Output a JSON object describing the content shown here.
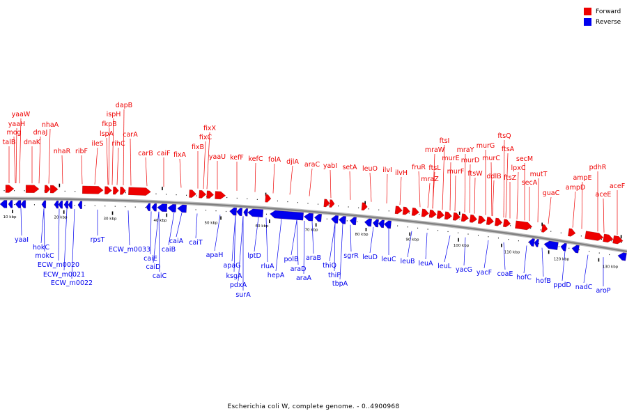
{
  "caption": "Escherichia coli W, complete genome. - 0..4900968",
  "legend": [
    {
      "label": "Forward",
      "color": "#ee0000"
    },
    {
      "label": "Reverse",
      "color": "#0000ee"
    }
  ],
  "colors": {
    "forward": "#ee0000",
    "reverse": "#0000ee",
    "backbone": "#808080"
  },
  "scale_labels": [
    "10 kbp",
    "20 kbp",
    "30 kbp",
    "40 kbp",
    "50 kbp",
    "60 kbp",
    "70 kbp",
    "80 kbp",
    "90 kbp",
    "100 kbp",
    "110 kbp",
    "120 kbp",
    "130 kbp"
  ],
  "forward_genes": [
    "talB",
    "mog",
    "yaaH",
    "yaaW",
    "dnaK",
    "dnaJ",
    "nhaA",
    "nhaR",
    "ribF",
    "ileS",
    "lspA",
    "fkpB",
    "ispH",
    "rihC",
    "dapB",
    "carA",
    "carB",
    "caiF",
    "fixA",
    "fixB",
    "fixC",
    "fixX",
    "yaaU",
    "kefF",
    "kefC",
    "folA",
    "djlA",
    "araC",
    "yabI",
    "setA",
    "leuO",
    "ilvI",
    "ilvH",
    "fruR",
    "mraZ",
    "mraW",
    "ftsL",
    "ftsI",
    "murE",
    "murF",
    "mraY",
    "murD",
    "ftsW",
    "murG",
    "murC",
    "ddlB",
    "ftsQ",
    "ftsA",
    "ftsZ",
    "lpxC",
    "secM",
    "secA",
    "mutT",
    "guaC",
    "ampD",
    "ampE",
    "pdhR",
    "aceE",
    "aceF"
  ],
  "reverse_genes": [
    "yaaI",
    "hokC",
    "mokC",
    "ECW_m0020",
    "ECW_m0021",
    "ECW_m0022",
    "rpsT",
    "ECW_m0033",
    "caiE",
    "caiD",
    "caiC",
    "caiB",
    "caiA",
    "caiT",
    "apaH",
    "apaG",
    "ksgA",
    "pdxA",
    "surA",
    "lptD",
    "rluA",
    "hepA",
    "polB",
    "araD",
    "araA",
    "araB",
    "thiQ",
    "thiP",
    "tbpA",
    "sgrR",
    "leuD",
    "leuC",
    "leuB",
    "leuA",
    "leuL",
    "yacG",
    "yacF",
    "coaE",
    "hofC",
    "hofB",
    "ppdD",
    "nadC",
    "aroP"
  ]
}
